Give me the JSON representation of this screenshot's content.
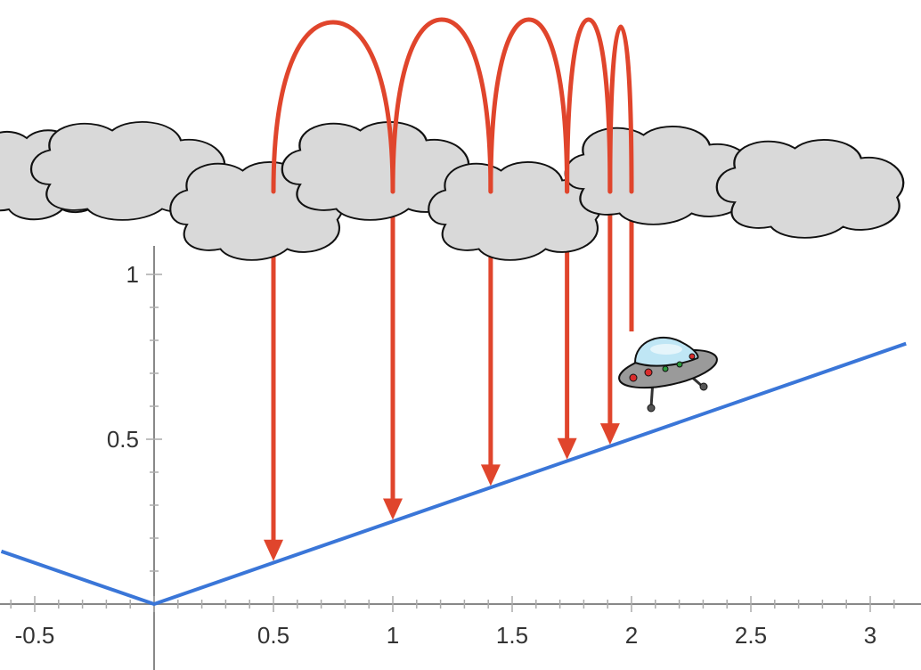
{
  "chart_data": {
    "type": "line",
    "x_ticks": [
      "-0.5",
      "0.5",
      "1",
      "1.5",
      "2",
      "2.5",
      "3"
    ],
    "y_ticks": [
      "0.5",
      "1"
    ],
    "xlim": [
      -0.64,
      3.15
    ],
    "ylim": [
      0,
      1.1
    ],
    "series": [
      {
        "points": [
          [
            -0.64,
            0.16
          ],
          [
            0,
            0
          ],
          [
            3.15,
            0.79
          ]
        ]
      }
    ],
    "jumps": [
      {
        "from": 0.5,
        "to": 1,
        "lands_y": 0.25
      },
      {
        "from": 1,
        "to": 1.41,
        "lands_y": 0.353
      },
      {
        "from": 1.41,
        "to": 1.73,
        "lands_y": 0.433
      },
      {
        "from": 1.73,
        "to": 1.91,
        "lands_y": 0.478
      },
      {
        "from": 1.91,
        "to": 2.0
      }
    ],
    "first_drop_x": 0.5,
    "colors": {
      "line": "#3a76d8",
      "arrows": "#e0452c",
      "axis": "#888888",
      "cloud_fill": "#d9d9d9",
      "cloud_stroke": "#111111"
    }
  },
  "icons": {
    "clouds": "cloud-icon",
    "ufo": "ufo-icon"
  }
}
